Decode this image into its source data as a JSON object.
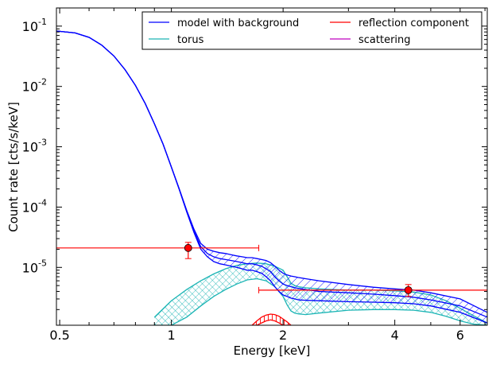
{
  "chart_data": {
    "type": "line",
    "title": "",
    "xlabel": "Energy [keV]",
    "ylabel": "Count rate [cts/s/keV]",
    "xscale": "log",
    "yscale": "log",
    "xlim": [
      0.49,
      7.1
    ],
    "ylim": [
      1.1e-06,
      0.2
    ],
    "x_ticks": [
      {
        "value": 0.5,
        "label": "0.5"
      },
      {
        "value": 1,
        "label": "1"
      },
      {
        "value": 2,
        "label": "2"
      },
      {
        "value": 4,
        "label": "4"
      },
      {
        "value": 6,
        "label": "6"
      }
    ],
    "y_ticks": [
      {
        "value": 1e-05,
        "base": "10",
        "exp": "-5"
      },
      {
        "value": 0.0001,
        "base": "10",
        "exp": "-4"
      },
      {
        "value": 0.001,
        "base": "10",
        "exp": "-3"
      },
      {
        "value": 0.01,
        "base": "10",
        "exp": "-2"
      },
      {
        "value": 0.1,
        "base": "10",
        "exp": "-1"
      }
    ],
    "legend": {
      "placement": "top-right",
      "entries": [
        {
          "label": "model with background",
          "color": "#0000ff"
        },
        {
          "label": "torus",
          "color": "#1cb5b5"
        },
        {
          "label": "reflection component",
          "color": "#ff0000"
        },
        {
          "label": "scattering",
          "color": "#bf00bf"
        }
      ]
    },
    "series": [
      {
        "name": "model with background",
        "color": "#0000ff",
        "x": [
          0.49,
          0.55,
          0.6,
          0.65,
          0.7,
          0.75,
          0.8,
          0.85,
          0.9,
          0.95,
          1.0,
          1.05,
          1.1,
          1.15,
          1.2,
          1.25,
          1.3,
          1.35,
          1.4,
          1.45,
          1.5,
          1.55,
          1.6,
          1.65,
          1.7,
          1.75,
          1.8,
          1.85,
          1.9,
          1.95,
          2.0,
          2.05,
          2.1,
          2.15,
          2.2,
          2.3,
          2.5,
          3.0,
          3.5,
          4.0,
          4.5,
          5.0,
          6.0,
          7.1
        ],
        "upper": [
          0.083,
          0.077,
          0.065,
          0.048,
          0.032,
          0.019,
          0.0104,
          0.0052,
          0.0024,
          0.0011,
          0.00046,
          0.0002,
          8.8e-05,
          4.3e-05,
          2.5e-05,
          2e-05,
          1.85e-05,
          1.75e-05,
          1.7e-05,
          1.62e-05,
          1.55e-05,
          1.5e-05,
          1.45e-05,
          1.45e-05,
          1.4e-05,
          1.35e-05,
          1.3e-05,
          1.2e-05,
          1.05e-05,
          9e-06,
          8e-06,
          7.5e-06,
          7.2e-06,
          7e-06,
          6.8e-06,
          6.5e-06,
          6e-06,
          5.2e-06,
          4.7e-06,
          4.4e-06,
          4.2e-06,
          3.8e-06,
          3e-06,
          1.8e-06
        ],
        "values": [
          0.083,
          0.077,
          0.065,
          0.048,
          0.032,
          0.019,
          0.0104,
          0.0052,
          0.0024,
          0.0011,
          0.00046,
          0.0002,
          8.6e-05,
          4e-05,
          2.2e-05,
          1.7e-05,
          1.5e-05,
          1.4e-05,
          1.35e-05,
          1.3e-05,
          1.25e-05,
          1.2e-05,
          1.15e-05,
          1.15e-05,
          1.1e-05,
          1.05e-05,
          9.5e-06,
          8.5e-06,
          7e-06,
          6e-06,
          5.3e-06,
          5e-06,
          4.8e-06,
          4.6e-06,
          4.5e-06,
          4.3e-06,
          4e-06,
          3.8e-06,
          3.6e-06,
          3.4e-06,
          3.2e-06,
          2.9e-06,
          2.3e-06,
          1.5e-06
        ],
        "lower": [
          0.083,
          0.077,
          0.065,
          0.048,
          0.032,
          0.019,
          0.0104,
          0.0052,
          0.0024,
          0.0011,
          0.00046,
          0.000195,
          8.3e-05,
          3.8e-05,
          2e-05,
          1.5e-05,
          1.25e-05,
          1.15e-05,
          1.1e-05,
          1.05e-05,
          1e-05,
          9.5e-06,
          9e-06,
          9e-06,
          8.5e-06,
          8e-06,
          7e-06,
          6e-06,
          4.8e-06,
          4e-06,
          3.5e-06,
          3.3e-06,
          3.1e-06,
          3e-06,
          2.9e-06,
          2.85e-06,
          2.8e-06,
          2.7e-06,
          2.65e-06,
          2.6e-06,
          2.5e-06,
          2.3e-06,
          1.8e-06,
          1.2e-06
        ]
      },
      {
        "name": "torus",
        "color": "#1cb5b5",
        "x": [
          0.9,
          1.0,
          1.1,
          1.2,
          1.3,
          1.4,
          1.5,
          1.6,
          1.7,
          1.8,
          1.9,
          2.0,
          2.05,
          2.1,
          2.15,
          2.2,
          2.3,
          2.5,
          3.0,
          3.5,
          4.0,
          4.5,
          5.0,
          5.5,
          6.0,
          6.5,
          7.1
        ],
        "upper": [
          1.5e-06,
          2.8e-06,
          4.3e-06,
          6e-06,
          7.8e-06,
          9.5e-06,
          1.08e-05,
          1.15e-05,
          1.18e-05,
          1.15e-05,
          1.05e-05,
          9e-06,
          7e-06,
          5.5e-06,
          5e-06,
          4.8e-06,
          4.6e-06,
          4.4e-06,
          4.2e-06,
          4.2e-06,
          4.1e-06,
          3.9e-06,
          3.5e-06,
          2.8e-06,
          2.1e-06,
          1.6e-06,
          1.2e-06
        ],
        "lower": [
          1.1e-06,
          1.1e-06,
          1.5e-06,
          2.3e-06,
          3.3e-06,
          4.3e-06,
          5.3e-06,
          6.2e-06,
          6.5e-06,
          6e-06,
          4.8e-06,
          3.3e-06,
          2.4e-06,
          1.9e-06,
          1.75e-06,
          1.7e-06,
          1.65e-06,
          1.75e-06,
          1.95e-06,
          2e-06,
          2e-06,
          1.95e-06,
          1.8e-06,
          1.55e-06,
          1.3e-06,
          1.15e-06,
          1.1e-06
        ]
      },
      {
        "name": "reflection component",
        "color": "#ff0000",
        "x": [
          1.65,
          1.7,
          1.75,
          1.8,
          1.85,
          1.9,
          1.95,
          2.0,
          2.05,
          2.1
        ],
        "upper": [
          1.1e-06,
          1.3e-06,
          1.5e-06,
          1.62e-06,
          1.68e-06,
          1.65e-06,
          1.55e-06,
          1.4e-06,
          1.25e-06,
          1.1e-06
        ],
        "lower": [
          1.1e-06,
          1.1e-06,
          1.2e-06,
          1.3e-06,
          1.35e-06,
          1.3e-06,
          1.2e-06,
          1.1e-06,
          1.1e-06,
          1.1e-06
        ]
      },
      {
        "name": "scattering",
        "color": "#bf00bf",
        "x": [],
        "values": []
      }
    ],
    "data_points": [
      {
        "x": 1.11,
        "xerr": [
          0.49,
          1.72
        ],
        "y": 2.1e-05,
        "yerr": [
          1.4e-05,
          2.6e-05
        ],
        "color": "#ff0000"
      },
      {
        "x": 4.35,
        "xerr": [
          1.72,
          7.1
        ],
        "y": 4.2e-06,
        "yerr": [
          3.3e-06,
          5.2e-06
        ],
        "color": "#ff0000"
      }
    ],
    "grid": false
  }
}
